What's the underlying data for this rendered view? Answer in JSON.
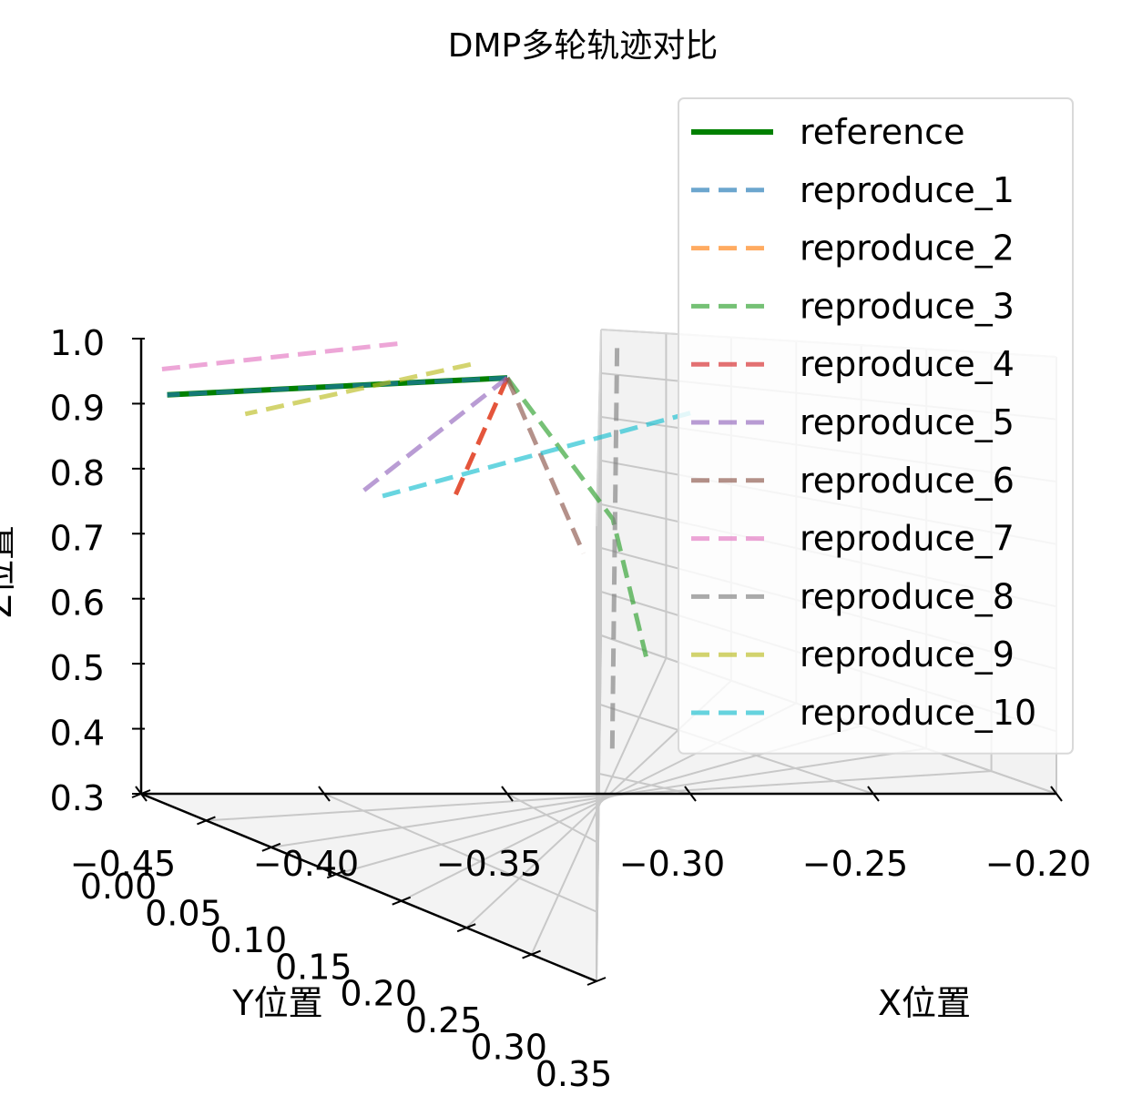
{
  "chart_data": {
    "type": "line",
    "projection": "3d",
    "title": "DMP多轮轨迹对比",
    "xlabel": "X位置",
    "ylabel": "Y位置",
    "zlabel": "Z位置",
    "xlim": [
      -0.45,
      -0.2
    ],
    "ylim": [
      0.0,
      0.35
    ],
    "zlim": [
      0.3,
      1.0
    ],
    "x_ticks": [
      "−0.20",
      "−0.25",
      "−0.30",
      "−0.35",
      "−0.40",
      "−0.45"
    ],
    "y_ticks": [
      "0.00",
      "0.05",
      "0.10",
      "0.15",
      "0.20",
      "0.25",
      "0.30",
      "0.35"
    ],
    "z_ticks": [
      "0.3",
      "0.4",
      "0.5",
      "0.6",
      "0.7",
      "0.8",
      "0.9",
      "1.0"
    ],
    "grid": true,
    "legend_position": "top-right",
    "series": [
      {
        "name": "reference",
        "color": "#008000",
        "style": "solid",
        "x": [
          -0.35,
          -0.45
        ],
        "y": [
          0.0,
          0.02
        ],
        "z": [
          0.95,
          0.93
        ]
      },
      {
        "name": "reproduce_1",
        "color": "#1f77b4",
        "style": "dashed",
        "x": [
          -0.35,
          -0.45
        ],
        "y": [
          0.0,
          0.02
        ],
        "z": [
          0.95,
          0.93
        ]
      },
      {
        "name": "reproduce_2",
        "color": "#ff7f0e",
        "style": "dashed",
        "x": [
          -0.35,
          -0.45
        ],
        "y": [
          0.0,
          0.24
        ],
        "z": [
          0.95,
          0.95
        ]
      },
      {
        "name": "reproduce_3",
        "color": "#2ca02c",
        "style": "dashed",
        "x": [
          -0.35,
          -0.32,
          -0.3
        ],
        "y": [
          0.0,
          0.08,
          0.17
        ],
        "z": [
          0.95,
          0.75,
          0.52
        ]
      },
      {
        "name": "reproduce_4",
        "color": "#d62728",
        "style": "dashed",
        "x": [
          -0.35,
          -0.45
        ],
        "y": [
          0.0,
          0.24
        ],
        "z": [
          0.95,
          0.95
        ]
      },
      {
        "name": "reproduce_5",
        "color": "#9467bd",
        "style": "dashed",
        "x": [
          -0.35,
          -0.4
        ],
        "y": [
          0.0,
          0.05
        ],
        "z": [
          0.95,
          0.8
        ]
      },
      {
        "name": "reproduce_6",
        "color": "#8c564b",
        "style": "dashed",
        "x": [
          -0.35,
          -0.45
        ],
        "y": [
          0.0,
          0.34
        ],
        "z": [
          0.95,
          0.95
        ]
      },
      {
        "name": "reproduce_7",
        "color": "#e377c2",
        "style": "dashed",
        "x": [
          -0.38,
          -0.45
        ],
        "y": [
          0.0,
          0.01
        ],
        "z": [
          1.0,
          0.96
        ]
      },
      {
        "name": "reproduce_8",
        "color": "#7f7f7f",
        "style": "dashed",
        "x": [
          -0.32,
          -0.3
        ],
        "y": [
          0.0,
          0.3
        ],
        "z": [
          1.0,
          0.35
        ]
      },
      {
        "name": "reproduce_9",
        "color": "#bcbd22",
        "style": "dashed",
        "x": [
          -0.36,
          -0.45
        ],
        "y": [
          0.0,
          0.08
        ],
        "z": [
          0.97,
          0.95
        ]
      },
      {
        "name": "reproduce_10",
        "color": "#17becf",
        "style": "dashed",
        "x": [
          -0.3,
          -0.42
        ],
        "y": [
          0.0,
          0.13
        ],
        "z": [
          0.9,
          0.85
        ]
      }
    ]
  }
}
